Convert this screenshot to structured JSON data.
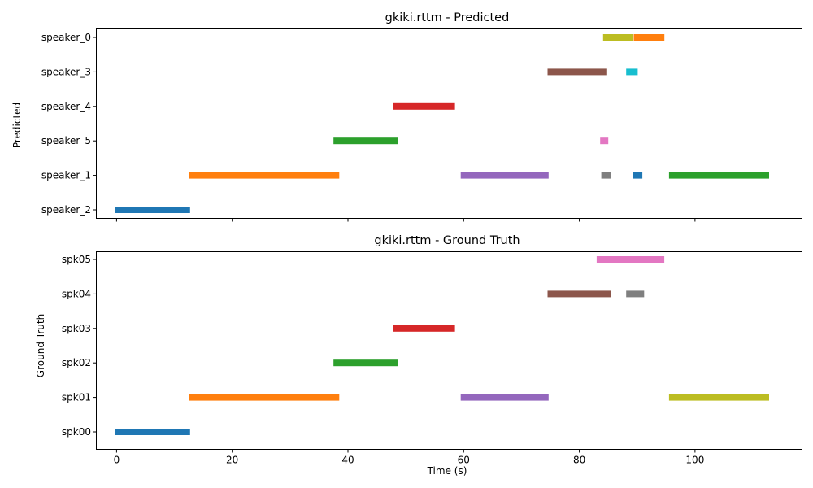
{
  "chart_data": [
    {
      "type": "timeline",
      "title": "gkiki.rttm - Predicted",
      "ylabel": "Predicted",
      "xlabel": "",
      "xlim": [
        -3.5,
        118.5
      ],
      "xticks": [
        0,
        20,
        40,
        60,
        80,
        100
      ],
      "show_xtick_labels": false,
      "grid": false,
      "categories": [
        "speaker_2",
        "speaker_1",
        "speaker_5",
        "speaker_4",
        "speaker_3",
        "speaker_0"
      ],
      "segments": [
        {
          "speaker": "speaker_2",
          "start": -0.3,
          "end": 12.7,
          "color": "#1f77b4"
        },
        {
          "speaker": "speaker_1",
          "start": 12.5,
          "end": 38.5,
          "color": "#ff7f0e"
        },
        {
          "speaker": "speaker_5",
          "start": 37.5,
          "end": 48.7,
          "color": "#2ca02c"
        },
        {
          "speaker": "speaker_4",
          "start": 47.8,
          "end": 58.5,
          "color": "#d62728"
        },
        {
          "speaker": "speaker_1",
          "start": 59.5,
          "end": 74.7,
          "color": "#9467bd"
        },
        {
          "speaker": "speaker_3",
          "start": 74.5,
          "end": 84.8,
          "color": "#8c564b"
        },
        {
          "speaker": "speaker_5",
          "start": 83.6,
          "end": 85.0,
          "color": "#e377c2"
        },
        {
          "speaker": "speaker_1",
          "start": 83.8,
          "end": 85.4,
          "color": "#7f7f7f"
        },
        {
          "speaker": "speaker_0",
          "start": 84.1,
          "end": 89.3,
          "color": "#bcbd22"
        },
        {
          "speaker": "speaker_3",
          "start": 88.1,
          "end": 90.1,
          "color": "#17becf"
        },
        {
          "speaker": "speaker_1",
          "start": 89.3,
          "end": 90.9,
          "color": "#1f77b4"
        },
        {
          "speaker": "speaker_0",
          "start": 89.4,
          "end": 94.7,
          "color": "#ff7f0e"
        },
        {
          "speaker": "speaker_1",
          "start": 95.5,
          "end": 112.8,
          "color": "#2ca02c"
        }
      ]
    },
    {
      "type": "timeline",
      "title": "gkiki.rttm - Ground Truth",
      "ylabel": "Ground Truth",
      "xlabel": "Time (s)",
      "xlim": [
        -3.5,
        118.5
      ],
      "xticks": [
        0,
        20,
        40,
        60,
        80,
        100
      ],
      "show_xtick_labels": true,
      "grid": false,
      "categories": [
        "spk00",
        "spk01",
        "spk02",
        "spk03",
        "spk04",
        "spk05"
      ],
      "segments": [
        {
          "speaker": "spk00",
          "start": -0.3,
          "end": 12.7,
          "color": "#1f77b4"
        },
        {
          "speaker": "spk01",
          "start": 12.5,
          "end": 38.5,
          "color": "#ff7f0e"
        },
        {
          "speaker": "spk02",
          "start": 37.5,
          "end": 48.7,
          "color": "#2ca02c"
        },
        {
          "speaker": "spk03",
          "start": 47.8,
          "end": 58.5,
          "color": "#d62728"
        },
        {
          "speaker": "spk01",
          "start": 59.5,
          "end": 74.7,
          "color": "#9467bd"
        },
        {
          "speaker": "spk04",
          "start": 74.5,
          "end": 85.5,
          "color": "#8c564b"
        },
        {
          "speaker": "spk05",
          "start": 83.0,
          "end": 94.7,
          "color": "#e377c2"
        },
        {
          "speaker": "spk04",
          "start": 88.1,
          "end": 91.2,
          "color": "#7f7f7f"
        },
        {
          "speaker": "spk01",
          "start": 95.5,
          "end": 112.8,
          "color": "#bcbd22"
        }
      ]
    }
  ]
}
